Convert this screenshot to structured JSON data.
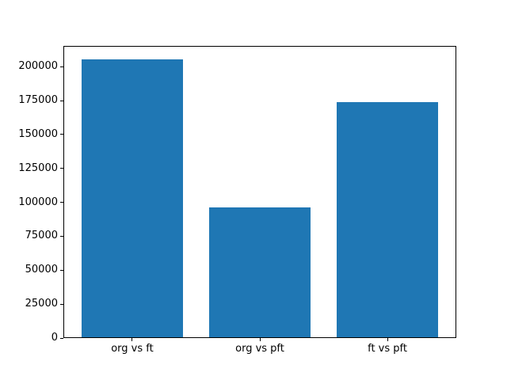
{
  "figure": {
    "background": "#ffffff",
    "frame_color": "#000000",
    "tick_color": "#000000"
  },
  "chart_data": {
    "type": "bar",
    "title": "",
    "xlabel": "",
    "ylabel": "",
    "categories": [
      "org vs ft",
      "org vs pft",
      "ft vs pft"
    ],
    "values": [
      205000,
      95500,
      173000
    ],
    "bar_color": "#1f77b4",
    "ylim": [
      0,
      215250
    ],
    "yticks": [
      0,
      25000,
      50000,
      75000,
      100000,
      125000,
      150000,
      175000,
      200000
    ],
    "grid": false,
    "legend": null
  }
}
